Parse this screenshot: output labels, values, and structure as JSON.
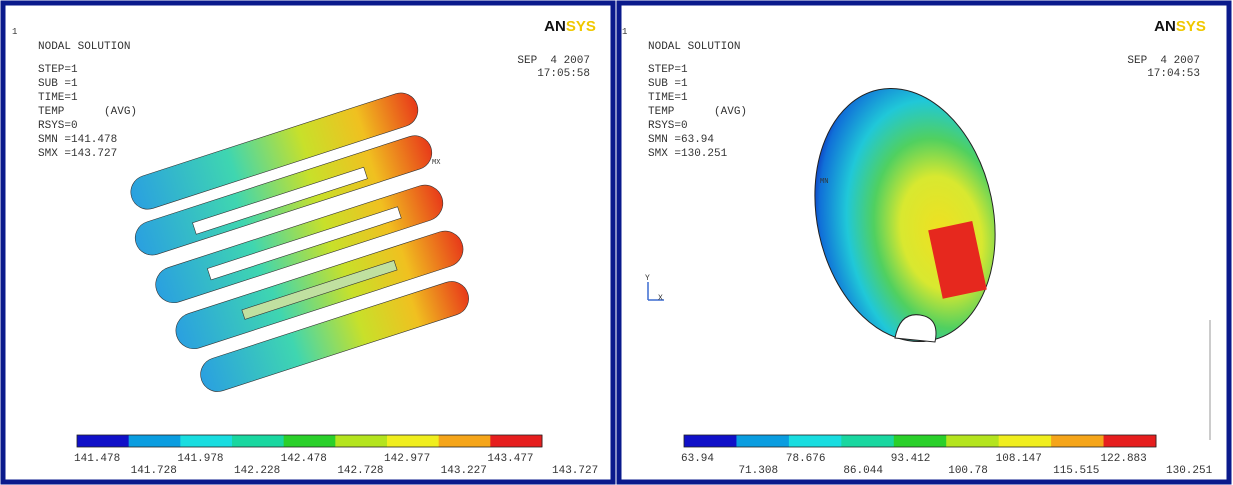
{
  "panels": [
    {
      "window_number": "1",
      "logo_an": "AN",
      "logo_sys": "SYS",
      "title": "NODAL SOLUTION",
      "info": [
        "STEP=1",
        "SUB =1",
        "TIME=1",
        "TEMP      (AVG)",
        "RSYS=0",
        "SMN =141.478",
        "SMX =143.727"
      ],
      "date": "SEP  4 2007",
      "time": "17:05:58",
      "marker": "MX",
      "legend": {
        "colors": [
          "#1010c8",
          "#0a9de0",
          "#19dde0",
          "#19d7a0",
          "#2ad02a",
          "#b4e41e",
          "#f0ee1e",
          "#f5a51a",
          "#e61e1e"
        ],
        "labels": [
          "141.478",
          "141.728",
          "141.978",
          "142.228",
          "142.478",
          "142.728",
          "142.977",
          "143.227",
          "143.477",
          "143.727"
        ]
      }
    },
    {
      "window_number": "1",
      "logo_an": "AN",
      "logo_sys": "SYS",
      "title": "NODAL SOLUTION",
      "info": [
        "STEP=1",
        "SUB =1",
        "TIME=1",
        "TEMP      (AVG)",
        "RSYS=0",
        "SMN =63.94",
        "SMX =130.251"
      ],
      "date": "SEP  4 2007",
      "time": "17:04:53",
      "marker": "MN",
      "legend": {
        "colors": [
          "#1010c8",
          "#0a9de0",
          "#19dde0",
          "#19d7a0",
          "#2ad02a",
          "#b4e41e",
          "#f0ee1e",
          "#f5a51a",
          "#e61e1e"
        ],
        "labels": [
          "63.94",
          "71.308",
          "78.676",
          "86.044",
          "93.412",
          "100.78",
          "108.147",
          "115.515",
          "122.883",
          "130.251"
        ]
      }
    }
  ]
}
